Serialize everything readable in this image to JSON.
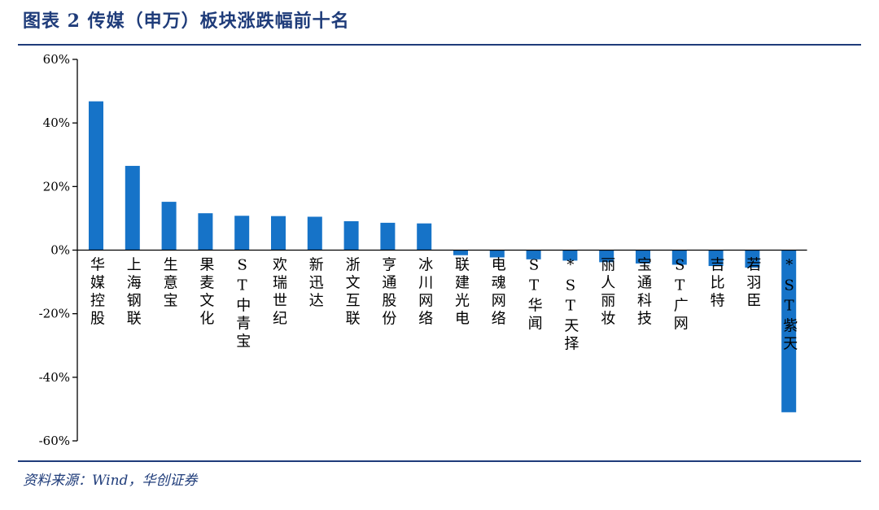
{
  "header": {
    "title": "图表 2   传媒（申万）板块涨跌幅前十名"
  },
  "footer": {
    "source": "资料来源：Wind，华创证券"
  },
  "colors": {
    "bar": "#1673C8",
    "rule": "#1F3C7A",
    "axis": "#000000",
    "text": "#000000"
  },
  "chart_data": {
    "type": "bar",
    "title": "",
    "xlabel": "",
    "ylabel": "",
    "ylim": [
      -60,
      60
    ],
    "yticks": [
      60,
      40,
      20,
      0,
      -20,
      -40,
      -60
    ],
    "ytick_labels": [
      "60%",
      "40%",
      "20%",
      "0%",
      "-20%",
      "-40%",
      "-60%"
    ],
    "grid": false,
    "legend": "none",
    "categories": [
      "华媒控股",
      "上海钢联",
      "生意宝",
      "果麦文化",
      "ST中青宝",
      "欢瑞世纪",
      "新迅达",
      "浙文互联",
      "亨通股份",
      "冰川网络",
      "联建光电",
      "电魂网络",
      "ST华闻",
      "*ST天择",
      "丽人丽妆",
      "宝通科技",
      "ST广网",
      "吉比特",
      "若羽臣",
      "*ST紫天"
    ],
    "values": [
      46.8,
      26.5,
      15.2,
      11.6,
      10.8,
      10.7,
      10.5,
      9.1,
      8.6,
      8.4,
      -1.6,
      -2.3,
      -2.9,
      -3.3,
      -3.8,
      -4.2,
      -4.6,
      -5.0,
      -5.5,
      -51.0
    ]
  }
}
